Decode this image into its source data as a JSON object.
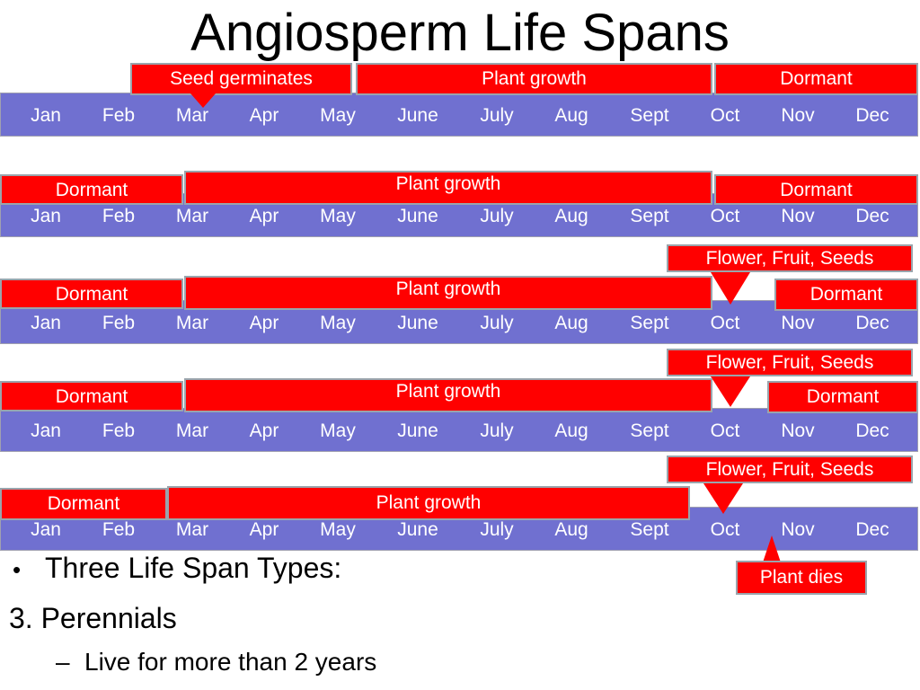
{
  "title": "Angiosperm Life Spans",
  "months": [
    "Jan",
    "Feb",
    "Mar",
    "Apr",
    "May",
    "June",
    "July",
    "Aug",
    "Sept",
    "Oct",
    "Nov",
    "Dec"
  ],
  "timelines": [
    {
      "callouts": [
        "Seed germinates",
        "Plant growth",
        "Dormant"
      ]
    },
    {
      "callouts": [
        "Dormant",
        "Plant growth",
        "Dormant"
      ]
    },
    {
      "callouts": [
        "Flower, Fruit, Seeds",
        "Dormant",
        "Plant growth",
        "Dormant"
      ]
    },
    {
      "callouts": [
        "Flower, Fruit, Seeds",
        "Dormant",
        "Plant growth",
        "Dormant"
      ]
    },
    {
      "callouts": [
        "Flower, Fruit, Seeds",
        "Dormant",
        "Plant growth",
        "Plant dies"
      ]
    }
  ],
  "text": {
    "bullet_marker": "•",
    "life_span_types": "Three Life Span Types:",
    "perennials": "3. Perennials",
    "dash": "–",
    "perennials_desc": "Live for more than 2 years"
  },
  "colors": {
    "timeline_bar": "#7070d0",
    "callout_fill": "#ff0000",
    "callout_border": "#9aa4ac"
  }
}
